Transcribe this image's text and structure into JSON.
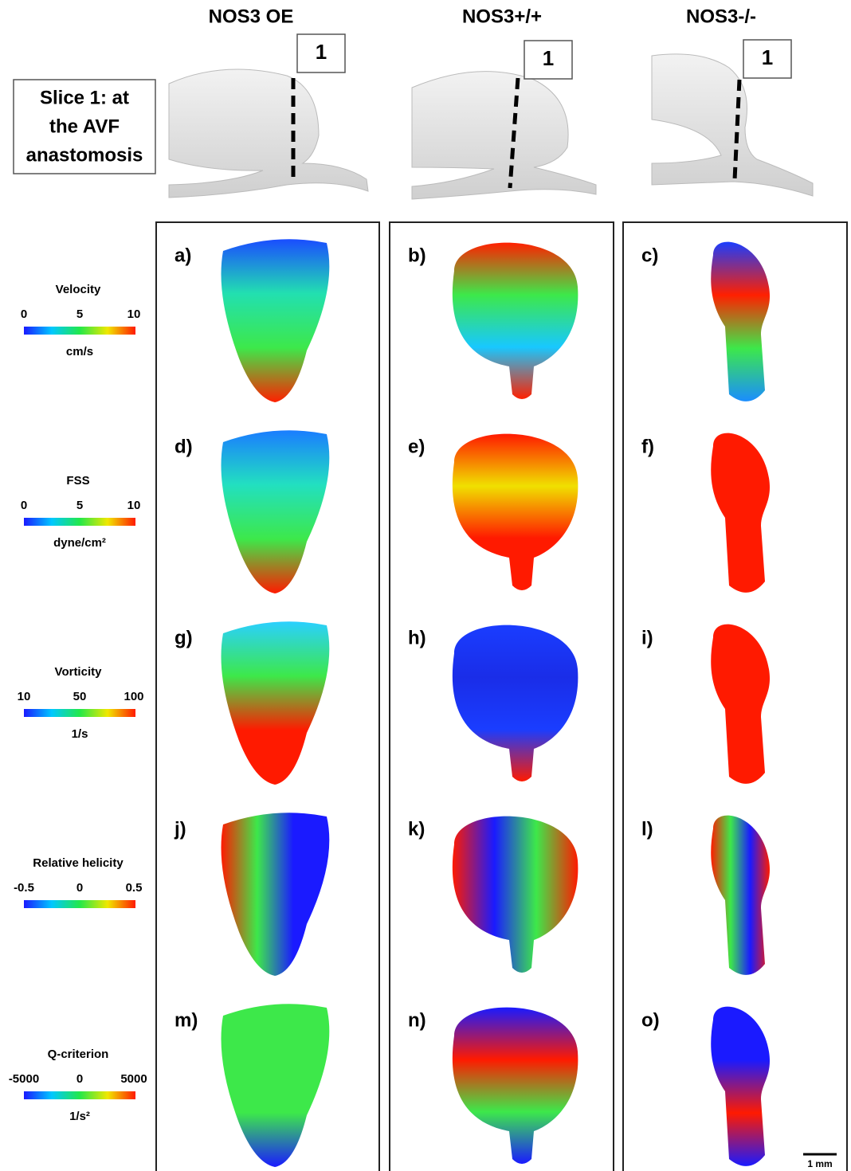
{
  "columns": [
    "NOS3 OE",
    "NOS3+/+",
    "NOS3-/-"
  ],
  "slice_label": [
    "Slice 1: at",
    "the AVF",
    "anastomosis"
  ],
  "slice_markers": [
    "1",
    "1",
    "1"
  ],
  "rows": [
    {
      "quantity": "Velocity",
      "ticks": [
        "0",
        "5",
        "10"
      ],
      "unit": "cm/s",
      "panels": [
        "a)",
        "b)",
        "c)"
      ]
    },
    {
      "quantity": "FSS",
      "ticks": [
        "0",
        "5",
        "10"
      ],
      "unit": "dyne/cm²",
      "panels": [
        "d)",
        "e)",
        "f)"
      ]
    },
    {
      "quantity": "Vorticity",
      "ticks": [
        "10",
        "50",
        "100"
      ],
      "unit": "1/s",
      "panels": [
        "g)",
        "h)",
        "i)"
      ]
    },
    {
      "quantity": "Relative helicity",
      "ticks": [
        "-0.5",
        "0",
        "0.5"
      ],
      "unit": "",
      "panels": [
        "j)",
        "k)",
        "l)"
      ]
    },
    {
      "quantity": "Q-criterion",
      "ticks": [
        "-5000",
        "0",
        "5000"
      ],
      "unit": "1/s²",
      "panels": [
        "m)",
        "n)",
        "o)"
      ]
    }
  ],
  "scale_bar": "1 mm"
}
